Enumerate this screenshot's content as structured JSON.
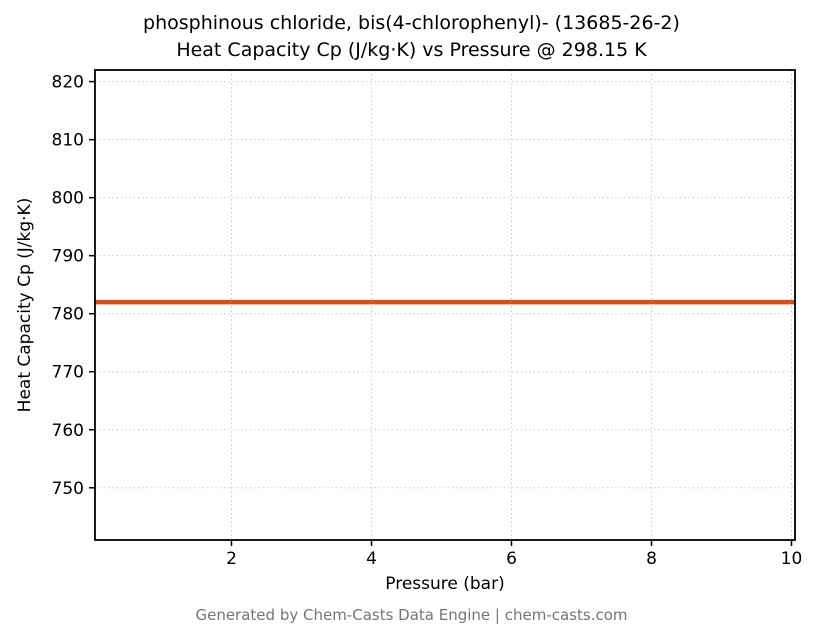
{
  "chart_data": {
    "type": "line",
    "title_line1": "phosphinous chloride, bis(4-chlorophenyl)- (13685-26-2)",
    "title_line2": "Heat Capacity Cp (J/kg·K) vs Pressure @ 298.15 K",
    "xlabel": "Pressure (bar)",
    "ylabel": "Heat Capacity Cp (J/kg·K)",
    "xlim": [
      0.05,
      10.05
    ],
    "ylim": [
      741,
      822
    ],
    "xticks": [
      2,
      4,
      6,
      8,
      10
    ],
    "yticks": [
      750,
      760,
      770,
      780,
      790,
      800,
      810,
      820
    ],
    "grid": true,
    "grid_style": "dotted",
    "legend": "none",
    "series": [
      {
        "name": "Heat Capacity Cp",
        "color": "#d0501e",
        "linewidth": 4.5,
        "x": [
          0.05,
          10.05
        ],
        "y": [
          782,
          782
        ]
      }
    ],
    "constant_value": 782,
    "temperature": "298.15 K"
  },
  "footer": {
    "text": "Generated by Chem-Casts Data Engine | chem-casts.com"
  },
  "style": {
    "grid_color": "#c8c8c8",
    "spine_color": "#000000",
    "tick_label_color": "#000000",
    "background": "#ffffff"
  }
}
